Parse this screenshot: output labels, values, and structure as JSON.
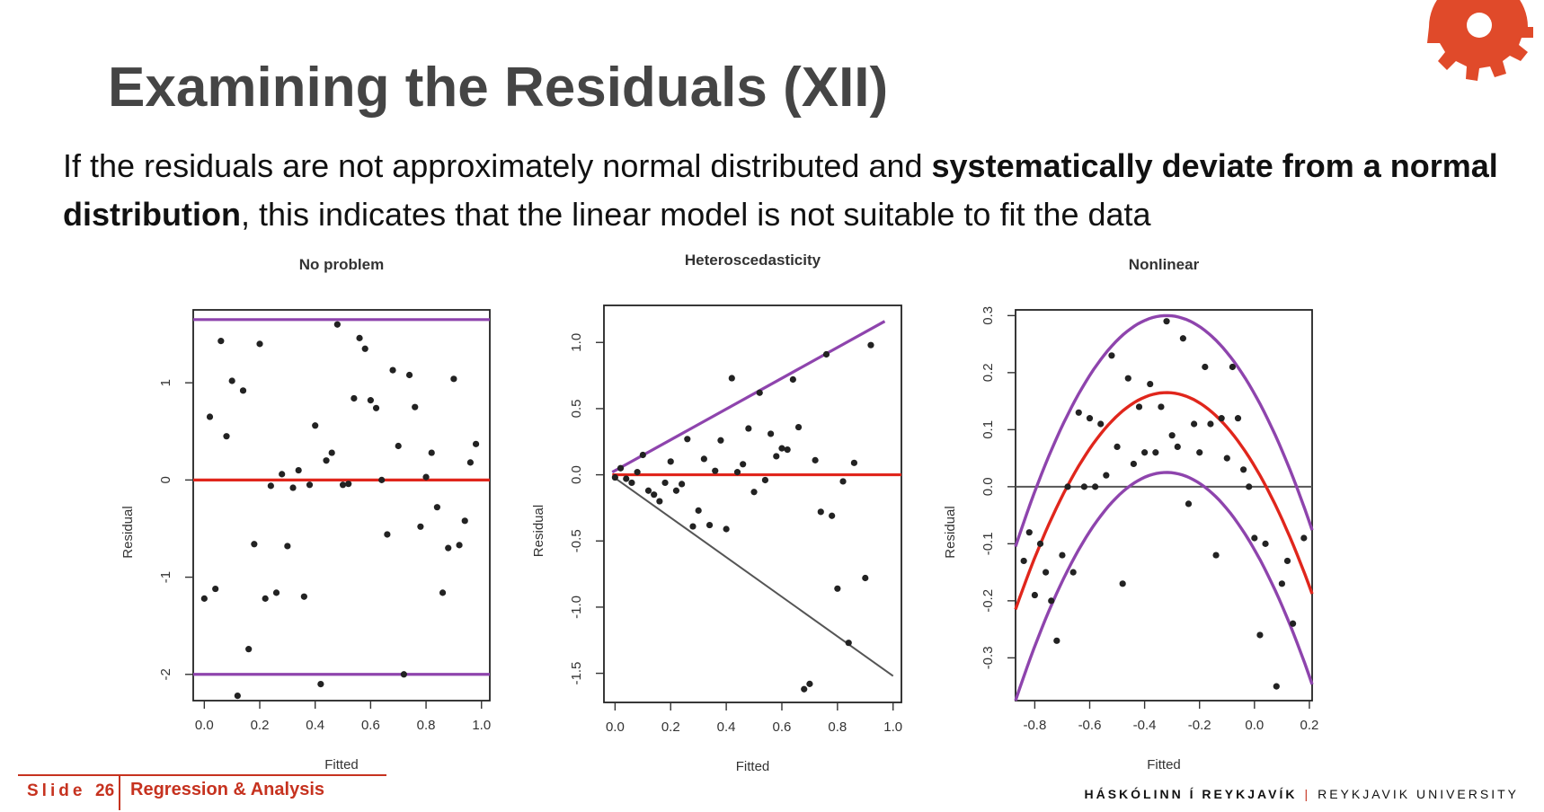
{
  "slide": {
    "title": "Examining the Residuals (XII)",
    "body_plain_1": "If the residuals are not approximately normal distributed and ",
    "body_bold_1": "systematically deviate from a normal distribution",
    "body_plain_2": ", this indicates that the linear model is not suitable to fit the data"
  },
  "footer": {
    "slide_word": "Slide",
    "slide_number": "26",
    "course": "Regression & Analysis",
    "university_is": "HÁSKÓLINN Í REYKJAVÍK",
    "university_en": "REYKJAVIK UNIVERSITY"
  },
  "colors": {
    "accent": "#c6321f",
    "purple": "#8e44ad",
    "red_line": "#e0261c",
    "points": "#222222",
    "grey_line": "#555555"
  },
  "chart_data": [
    {
      "type": "scatter",
      "title": "No problem",
      "xlabel": "Fitted",
      "ylabel": "Residual",
      "xlim": [
        -0.04,
        1.03
      ],
      "ylim": [
        -2.27,
        1.75
      ],
      "xticks": [
        0.0,
        0.2,
        0.4,
        0.6,
        0.8,
        1.0
      ],
      "xtick_labels": [
        "0.0",
        "0.2",
        "0.4",
        "0.6",
        "0.8",
        "1.0"
      ],
      "yticks": [
        -2,
        -1,
        0,
        1
      ],
      "ytick_labels": [
        "-2",
        "-1",
        "0",
        "1"
      ],
      "lines": [
        {
          "name": "upper band",
          "color": "purple",
          "points": [
            [
              -0.04,
              1.65
            ],
            [
              1.03,
              1.65
            ]
          ]
        },
        {
          "name": "zero line",
          "color": "red",
          "points": [
            [
              -0.04,
              0.0
            ],
            [
              1.03,
              0.0
            ]
          ]
        },
        {
          "name": "lower band",
          "color": "purple",
          "points": [
            [
              -0.04,
              -2.0
            ],
            [
              1.03,
              -2.0
            ]
          ]
        }
      ],
      "points": [
        [
          0.0,
          -1.22
        ],
        [
          0.02,
          0.65
        ],
        [
          0.04,
          -1.12
        ],
        [
          0.06,
          1.43
        ],
        [
          0.08,
          0.45
        ],
        [
          0.1,
          1.02
        ],
        [
          0.12,
          -2.22
        ],
        [
          0.14,
          0.92
        ],
        [
          0.16,
          -1.74
        ],
        [
          0.18,
          -0.66
        ],
        [
          0.2,
          1.4
        ],
        [
          0.22,
          -1.22
        ],
        [
          0.24,
          -0.06
        ],
        [
          0.26,
          -1.16
        ],
        [
          0.28,
          0.06
        ],
        [
          0.3,
          -0.68
        ],
        [
          0.32,
          -0.08
        ],
        [
          0.34,
          0.1
        ],
        [
          0.36,
          -1.2
        ],
        [
          0.38,
          -0.05
        ],
        [
          0.4,
          0.56
        ],
        [
          0.42,
          -2.1
        ],
        [
          0.44,
          0.2
        ],
        [
          0.46,
          0.28
        ],
        [
          0.48,
          1.6
        ],
        [
          0.5,
          -0.05
        ],
        [
          0.52,
          -0.04
        ],
        [
          0.54,
          0.84
        ],
        [
          0.56,
          1.46
        ],
        [
          0.58,
          1.35
        ],
        [
          0.6,
          0.82
        ],
        [
          0.62,
          0.74
        ],
        [
          0.64,
          0.0
        ],
        [
          0.66,
          -0.56
        ],
        [
          0.68,
          1.13
        ],
        [
          0.7,
          0.35
        ],
        [
          0.72,
          -2.0
        ],
        [
          0.74,
          1.08
        ],
        [
          0.76,
          0.75
        ],
        [
          0.78,
          -0.48
        ],
        [
          0.8,
          0.03
        ],
        [
          0.82,
          0.28
        ],
        [
          0.84,
          -0.28
        ],
        [
          0.86,
          -1.16
        ],
        [
          0.88,
          -0.7
        ],
        [
          0.9,
          1.04
        ],
        [
          0.92,
          -0.67
        ],
        [
          0.94,
          -0.42
        ],
        [
          0.96,
          0.18
        ],
        [
          0.98,
          0.37
        ]
      ]
    },
    {
      "type": "scatter",
      "title": "Heteroscedasticity",
      "xlabel": "Fitted",
      "ylabel": "Residual",
      "xlim": [
        -0.04,
        1.03
      ],
      "ylim": [
        -1.72,
        1.28
      ],
      "xticks": [
        0.0,
        0.2,
        0.4,
        0.6,
        0.8,
        1.0
      ],
      "xtick_labels": [
        "0.0",
        "0.2",
        "0.4",
        "0.6",
        "0.8",
        "1.0"
      ],
      "yticks": [
        -1.5,
        -1.0,
        -0.5,
        0.0,
        0.5,
        1.0
      ],
      "ytick_labels": [
        "-1.5",
        "-1.0",
        "-0.5",
        "0.0",
        "0.5",
        "1.0"
      ],
      "lines": [
        {
          "name": "upper band",
          "color": "purple",
          "points": [
            [
              -0.01,
              0.02
            ],
            [
              0.97,
              1.16
            ]
          ]
        },
        {
          "name": "zero line",
          "color": "red",
          "points": [
            [
              -0.01,
              0.0
            ],
            [
              1.03,
              0.0
            ]
          ]
        },
        {
          "name": "lower band",
          "color": "grey",
          "points": [
            [
              -0.01,
              -0.01
            ],
            [
              1.0,
              -1.52
            ]
          ]
        }
      ],
      "points": [
        [
          0.0,
          -0.02
        ],
        [
          0.02,
          0.05
        ],
        [
          0.04,
          -0.03
        ],
        [
          0.06,
          -0.06
        ],
        [
          0.08,
          0.02
        ],
        [
          0.1,
          0.15
        ],
        [
          0.12,
          -0.12
        ],
        [
          0.14,
          -0.15
        ],
        [
          0.16,
          -0.2
        ],
        [
          0.18,
          -0.06
        ],
        [
          0.2,
          0.1
        ],
        [
          0.22,
          -0.12
        ],
        [
          0.24,
          -0.07
        ],
        [
          0.26,
          0.27
        ],
        [
          0.28,
          -0.39
        ],
        [
          0.3,
          -0.27
        ],
        [
          0.32,
          0.12
        ],
        [
          0.34,
          -0.38
        ],
        [
          0.36,
          0.03
        ],
        [
          0.38,
          0.26
        ],
        [
          0.4,
          -0.41
        ],
        [
          0.42,
          0.73
        ],
        [
          0.44,
          0.02
        ],
        [
          0.46,
          0.08
        ],
        [
          0.48,
          0.35
        ],
        [
          0.5,
          -0.13
        ],
        [
          0.52,
          0.62
        ],
        [
          0.54,
          -0.04
        ],
        [
          0.56,
          0.31
        ],
        [
          0.58,
          0.14
        ],
        [
          0.6,
          0.2
        ],
        [
          0.62,
          0.19
        ],
        [
          0.64,
          0.72
        ],
        [
          0.66,
          0.36
        ],
        [
          0.68,
          -1.62
        ],
        [
          0.7,
          -1.58
        ],
        [
          0.72,
          0.11
        ],
        [
          0.74,
          -0.28
        ],
        [
          0.76,
          0.91
        ],
        [
          0.78,
          -0.31
        ],
        [
          0.8,
          -0.86
        ],
        [
          0.82,
          -0.05
        ],
        [
          0.84,
          -1.27
        ],
        [
          0.86,
          0.09
        ],
        [
          0.9,
          -0.78
        ],
        [
          0.92,
          0.98
        ]
      ]
    },
    {
      "type": "scatter",
      "title": "Nonlinear",
      "xlabel": "Fitted",
      "ylabel": "Residual",
      "xlim": [
        -0.87,
        0.21
      ],
      "ylim": [
        -0.375,
        0.31
      ],
      "xticks": [
        -0.8,
        -0.6,
        -0.4,
        -0.2,
        0.0,
        0.2
      ],
      "xtick_labels": [
        "-0.8",
        "-0.6",
        "-0.4",
        "-0.2",
        "0.0",
        "0.2"
      ],
      "yticks": [
        -0.3,
        -0.2,
        -0.1,
        0.0,
        0.1,
        0.2,
        0.3
      ],
      "ytick_labels": [
        "-0.3",
        "-0.2",
        "-0.1",
        "0.0",
        "0.1",
        "0.2",
        "0.3"
      ],
      "curves": [
        {
          "name": "upper band",
          "color": "purple",
          "vertex": [
            -0.32,
            0.3
          ],
          "ends": -0.105
        },
        {
          "name": "fit",
          "color": "red",
          "vertex": [
            -0.32,
            0.165
          ],
          "ends": -0.215
        },
        {
          "name": "lower band",
          "color": "purple",
          "vertex": [
            -0.32,
            0.025
          ],
          "ends": -0.375
        }
      ],
      "lines": [
        {
          "name": "zero line",
          "color": "grey",
          "points": [
            [
              -0.87,
              0.0
            ],
            [
              0.21,
              0.0
            ]
          ]
        }
      ],
      "points": [
        [
          -0.84,
          -0.13
        ],
        [
          -0.82,
          -0.08
        ],
        [
          -0.8,
          -0.19
        ],
        [
          -0.78,
          -0.1
        ],
        [
          -0.76,
          -0.15
        ],
        [
          -0.74,
          -0.2
        ],
        [
          -0.72,
          -0.27
        ],
        [
          -0.7,
          -0.12
        ],
        [
          -0.68,
          0.0
        ],
        [
          -0.66,
          -0.15
        ],
        [
          -0.64,
          0.13
        ],
        [
          -0.62,
          0.0
        ],
        [
          -0.6,
          0.12
        ],
        [
          -0.58,
          0.0
        ],
        [
          -0.56,
          0.11
        ],
        [
          -0.54,
          0.02
        ],
        [
          -0.52,
          0.23
        ],
        [
          -0.5,
          0.07
        ],
        [
          -0.48,
          -0.17
        ],
        [
          -0.46,
          0.19
        ],
        [
          -0.44,
          0.04
        ],
        [
          -0.42,
          0.14
        ],
        [
          -0.4,
          0.06
        ],
        [
          -0.38,
          0.18
        ],
        [
          -0.36,
          0.06
        ],
        [
          -0.34,
          0.14
        ],
        [
          -0.32,
          0.29
        ],
        [
          -0.3,
          0.09
        ],
        [
          -0.28,
          0.07
        ],
        [
          -0.26,
          0.26
        ],
        [
          -0.24,
          -0.03
        ],
        [
          -0.22,
          0.11
        ],
        [
          -0.2,
          0.06
        ],
        [
          -0.18,
          0.21
        ],
        [
          -0.16,
          0.11
        ],
        [
          -0.14,
          -0.12
        ],
        [
          -0.12,
          0.12
        ],
        [
          -0.1,
          0.05
        ],
        [
          -0.08,
          0.21
        ],
        [
          -0.06,
          0.12
        ],
        [
          -0.04,
          0.03
        ],
        [
          -0.02,
          0.0
        ],
        [
          0.0,
          -0.09
        ],
        [
          0.02,
          -0.26
        ],
        [
          0.04,
          -0.1
        ],
        [
          0.08,
          -0.35
        ],
        [
          0.1,
          -0.17
        ],
        [
          0.12,
          -0.13
        ],
        [
          0.14,
          -0.24
        ],
        [
          0.18,
          -0.09
        ]
      ]
    }
  ]
}
